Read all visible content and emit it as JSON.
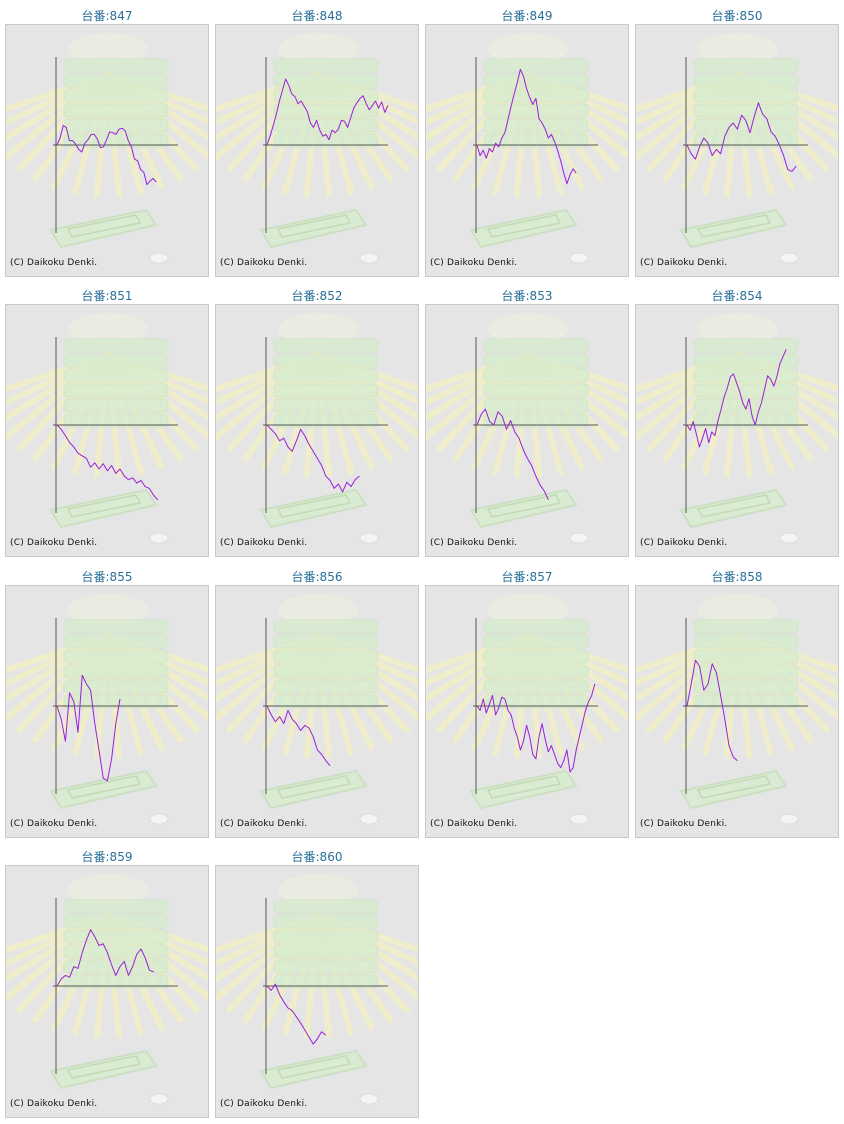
{
  "label_prefix": "台番:",
  "copyright": "(C) Daikoku Denki.",
  "colors": {
    "line": "#9b1fd6",
    "axis": "#555555",
    "label": "#2a6f9a",
    "panel": "#e5e5e5"
  },
  "chart_data": [
    {
      "type": "line",
      "machine": "847",
      "values": [
        0,
        0.08,
        0.22,
        0.2,
        0.05,
        0.05,
        0.01,
        -0.05,
        -0.08,
        0.02,
        0.06,
        0.12,
        0.12,
        0.07,
        -0.03,
        -0.02,
        0.06,
        0.15,
        0.14,
        0.12,
        0.18,
        0.19,
        0.16,
        0.05,
        -0.02,
        -0.16,
        -0.18,
        -0.28,
        -0.31,
        -0.45,
        -0.41,
        -0.38,
        -0.42
      ]
    },
    {
      "type": "line",
      "machine": "848",
      "values": [
        0,
        0.1,
        0.22,
        0.35,
        0.5,
        0.62,
        0.75,
        0.68,
        0.58,
        0.55,
        0.47,
        0.5,
        0.44,
        0.38,
        0.25,
        0.2,
        0.28,
        0.17,
        0.1,
        0.12,
        0.06,
        0.17,
        0.14,
        0.18,
        0.28,
        0.27,
        0.2,
        0.31,
        0.42,
        0.48,
        0.53,
        0.56,
        0.47,
        0.4,
        0.45,
        0.5,
        0.42,
        0.49,
        0.37,
        0.45
      ]
    },
    {
      "type": "line",
      "machine": "849",
      "values": [
        0,
        -0.12,
        -0.06,
        -0.15,
        -0.04,
        -0.08,
        0.02,
        -0.02,
        0.08,
        0.14,
        0.29,
        0.44,
        0.58,
        0.71,
        0.86,
        0.78,
        0.64,
        0.54,
        0.46,
        0.53,
        0.3,
        0.25,
        0.18,
        0.08,
        0.12,
        0.04,
        -0.06,
        -0.18,
        -0.32,
        -0.44,
        -0.34,
        -0.27,
        -0.32
      ]
    },
    {
      "type": "line",
      "machine": "850",
      "values": [
        0,
        -0.1,
        -0.16,
        -0.02,
        0.08,
        0.02,
        -0.12,
        -0.05,
        -0.1,
        0.1,
        0.2,
        0.25,
        0.18,
        0.34,
        0.28,
        0.14,
        0.32,
        0.48,
        0.35,
        0.3,
        0.15,
        0.1,
        0.0,
        -0.12,
        -0.28,
        -0.3,
        -0.24
      ]
    },
    {
      "type": "line",
      "machine": "851",
      "values": [
        0,
        -0.05,
        -0.12,
        -0.2,
        -0.25,
        -0.32,
        -0.35,
        -0.38,
        -0.48,
        -0.43,
        -0.5,
        -0.44,
        -0.52,
        -0.46,
        -0.55,
        -0.5,
        -0.58,
        -0.62,
        -0.6,
        -0.66,
        -0.63,
        -0.7,
        -0.72,
        -0.8,
        -0.85
      ]
    },
    {
      "type": "line",
      "machine": "852",
      "values": [
        0,
        -0.05,
        -0.1,
        -0.18,
        -0.15,
        -0.25,
        -0.3,
        -0.18,
        -0.05,
        -0.12,
        -0.22,
        -0.3,
        -0.38,
        -0.46,
        -0.58,
        -0.63,
        -0.72,
        -0.67,
        -0.76,
        -0.65,
        -0.7,
        -0.62,
        -0.58
      ]
    },
    {
      "type": "line",
      "machine": "853",
      "values": [
        0,
        0.12,
        0.18,
        0.04,
        0.0,
        0.15,
        0.1,
        -0.05,
        0.05,
        -0.08,
        -0.15,
        -0.28,
        -0.38,
        -0.46,
        -0.58,
        -0.68,
        -0.75,
        -0.85
      ]
    },
    {
      "type": "line",
      "machine": "854",
      "values": [
        0,
        -0.06,
        0.04,
        -0.1,
        -0.25,
        -0.15,
        -0.04,
        -0.2,
        -0.08,
        -0.12,
        0.05,
        0.18,
        0.32,
        0.42,
        0.55,
        0.58,
        0.48,
        0.38,
        0.25,
        0.18,
        0.3,
        0.1,
        0.0,
        0.15,
        0.25,
        0.4,
        0.56,
        0.52,
        0.44,
        0.55,
        0.7,
        0.78,
        0.86
      ]
    },
    {
      "type": "line",
      "machine": "855",
      "values": [
        0,
        -0.15,
        -0.4,
        0.15,
        0.05,
        -0.3,
        0.35,
        0.25,
        0.18,
        -0.2,
        -0.5,
        -0.82,
        -0.85,
        -0.6,
        -0.2,
        0.08
      ]
    },
    {
      "type": "line",
      "machine": "856",
      "values": [
        0,
        -0.1,
        -0.18,
        -0.12,
        -0.2,
        -0.05,
        -0.15,
        -0.2,
        -0.28,
        -0.22,
        -0.25,
        -0.35,
        -0.5,
        -0.55,
        -0.62,
        -0.68
      ]
    },
    {
      "type": "line",
      "machine": "857",
      "values": [
        0,
        -0.05,
        0.08,
        -0.08,
        0.02,
        0.12,
        -0.1,
        -0.02,
        0.1,
        0.08,
        -0.05,
        -0.1,
        -0.25,
        -0.35,
        -0.5,
        -0.4,
        -0.22,
        -0.35,
        -0.55,
        -0.6,
        -0.35,
        -0.2,
        -0.38,
        -0.52,
        -0.45,
        -0.55,
        -0.65,
        -0.7,
        -0.62,
        -0.5,
        -0.75,
        -0.7,
        -0.5,
        -0.35,
        -0.2,
        -0.05,
        0.05,
        0.12,
        0.25
      ]
    },
    {
      "type": "line",
      "machine": "858",
      "values": [
        0,
        0.25,
        0.52,
        0.45,
        0.18,
        0.25,
        0.48,
        0.38,
        0.12,
        -0.15,
        -0.45,
        -0.58,
        -0.62
      ]
    },
    {
      "type": "line",
      "machine": "859",
      "values": [
        0,
        0.08,
        0.12,
        0.1,
        0.22,
        0.2,
        0.38,
        0.52,
        0.64,
        0.56,
        0.46,
        0.48,
        0.38,
        0.24,
        0.12,
        0.22,
        0.28,
        0.12,
        0.22,
        0.36,
        0.42,
        0.32,
        0.18,
        0.16
      ]
    },
    {
      "type": "line",
      "machine": "860",
      "values": [
        0,
        -0.05,
        0.02,
        -0.1,
        -0.18,
        -0.25,
        -0.28,
        -0.35,
        -0.42,
        -0.5,
        -0.58,
        -0.66,
        -0.6,
        -0.52,
        -0.56
      ]
    }
  ]
}
